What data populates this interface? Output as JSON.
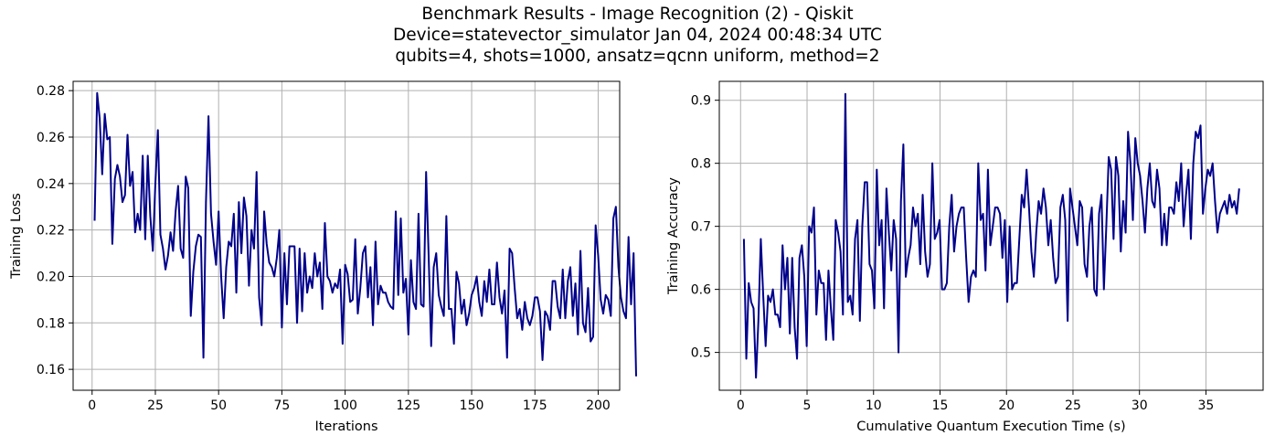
{
  "figure": {
    "title_lines": [
      "Benchmark Results - Image Recognition (2) - Qiskit",
      "Device=statevector_simulator  Jan 04, 2024 00:48:34 UTC",
      "qubits=4, shots=1000, ansatz=qcnn uniform, method=2"
    ]
  },
  "colors": {
    "line": "#00008b",
    "grid": "#b0b0b0",
    "axes": "#000000"
  },
  "chart_data": [
    {
      "type": "line",
      "xlabel": "Iterations",
      "ylabel": "Training Loss",
      "xlim": [
        -7.5,
        208.5
      ],
      "ylim": [
        0.151,
        0.284
      ],
      "xticks": [
        0,
        25,
        50,
        75,
        100,
        125,
        150,
        175,
        200
      ],
      "yticks": [
        0.16,
        0.18,
        0.2,
        0.22,
        0.24,
        0.26,
        0.28
      ],
      "xtick_labels": [
        "0",
        "25",
        "50",
        "75",
        "100",
        "125",
        "150",
        "175",
        "200"
      ],
      "ytick_labels": [
        "0.16",
        "0.18",
        "0.20",
        "0.22",
        "0.24",
        "0.26",
        "0.28"
      ],
      "grid": true,
      "x_start": 1,
      "x_step": 1,
      "series": [
        {
          "values": [
            0.224,
            0.279,
            0.268,
            0.244,
            0.27,
            0.259,
            0.26,
            0.214,
            0.242,
            0.248,
            0.243,
            0.232,
            0.235,
            0.261,
            0.239,
            0.245,
            0.219,
            0.227,
            0.22,
            0.252,
            0.216,
            0.252,
            0.226,
            0.211,
            0.24,
            0.263,
            0.218,
            0.212,
            0.203,
            0.209,
            0.219,
            0.211,
            0.228,
            0.239,
            0.212,
            0.208,
            0.243,
            0.238,
            0.183,
            0.202,
            0.213,
            0.218,
            0.217,
            0.165,
            0.232,
            0.269,
            0.227,
            0.215,
            0.205,
            0.228,
            0.2,
            0.182,
            0.204,
            0.215,
            0.213,
            0.227,
            0.193,
            0.232,
            0.21,
            0.234,
            0.226,
            0.196,
            0.22,
            0.212,
            0.245,
            0.191,
            0.179,
            0.228,
            0.214,
            0.206,
            0.204,
            0.2,
            0.208,
            0.22,
            0.178,
            0.21,
            0.188,
            0.213,
            0.213,
            0.213,
            0.18,
            0.212,
            0.185,
            0.21,
            0.193,
            0.2,
            0.195,
            0.21,
            0.2,
            0.206,
            0.186,
            0.223,
            0.2,
            0.198,
            0.193,
            0.197,
            0.195,
            0.203,
            0.171,
            0.205,
            0.201,
            0.189,
            0.19,
            0.216,
            0.184,
            0.195,
            0.21,
            0.213,
            0.191,
            0.204,
            0.179,
            0.215,
            0.188,
            0.196,
            0.193,
            0.193,
            0.189,
            0.187,
            0.186,
            0.228,
            0.192,
            0.225,
            0.193,
            0.199,
            0.175,
            0.207,
            0.189,
            0.186,
            0.227,
            0.188,
            0.187,
            0.245,
            0.209,
            0.17,
            0.204,
            0.21,
            0.192,
            0.187,
            0.183,
            0.226,
            0.186,
            0.186,
            0.171,
            0.202,
            0.197,
            0.184,
            0.19,
            0.179,
            0.184,
            0.192,
            0.195,
            0.2,
            0.189,
            0.183,
            0.198,
            0.189,
            0.203,
            0.188,
            0.188,
            0.206,
            0.191,
            0.184,
            0.194,
            0.165,
            0.212,
            0.21,
            0.195,
            0.182,
            0.186,
            0.177,
            0.189,
            0.182,
            0.179,
            0.183,
            0.191,
            0.191,
            0.185,
            0.164,
            0.185,
            0.183,
            0.177,
            0.198,
            0.198,
            0.187,
            0.182,
            0.203,
            0.182,
            0.198,
            0.204,
            0.183,
            0.197,
            0.175,
            0.211,
            0.18,
            0.176,
            0.195,
            0.172,
            0.174,
            0.222,
            0.209,
            0.19,
            0.184,
            0.192,
            0.19,
            0.183,
            0.225,
            0.23,
            0.204,
            0.191,
            0.185,
            0.182,
            0.217,
            0.188,
            0.21,
            0.157
          ]
        }
      ]
    },
    {
      "type": "line",
      "xlabel": "Cumulative Quantum Execution Time (s)",
      "ylabel": "Training Accuracy",
      "xlim": [
        -1.6,
        39.3
      ],
      "ylim": [
        0.44,
        0.93
      ],
      "xticks": [
        0,
        5,
        10,
        15,
        20,
        25,
        30,
        35
      ],
      "yticks": [
        0.5,
        0.6,
        0.7,
        0.8,
        0.9
      ],
      "xtick_labels": [
        "0",
        "5",
        "10",
        "15",
        "20",
        "25",
        "30",
        "35"
      ],
      "ytick_labels": [
        "0.5",
        "0.6",
        "0.7",
        "0.8",
        "0.9"
      ],
      "grid": true,
      "x_start": 0.25,
      "x_end": 37.5,
      "series": [
        {
          "values": [
            0.68,
            0.49,
            0.61,
            0.58,
            0.57,
            0.46,
            0.55,
            0.68,
            0.59,
            0.51,
            0.59,
            0.58,
            0.6,
            0.56,
            0.56,
            0.54,
            0.67,
            0.6,
            0.65,
            0.53,
            0.65,
            0.54,
            0.49,
            0.65,
            0.67,
            0.62,
            0.51,
            0.7,
            0.69,
            0.73,
            0.56,
            0.63,
            0.61,
            0.61,
            0.52,
            0.63,
            0.57,
            0.52,
            0.71,
            0.69,
            0.66,
            0.56,
            0.91,
            0.58,
            0.59,
            0.56,
            0.68,
            0.71,
            0.55,
            0.7,
            0.77,
            0.77,
            0.64,
            0.63,
            0.57,
            0.79,
            0.67,
            0.71,
            0.57,
            0.76,
            0.69,
            0.63,
            0.71,
            0.68,
            0.5,
            0.74,
            0.83,
            0.62,
            0.65,
            0.67,
            0.73,
            0.7,
            0.72,
            0.64,
            0.75,
            0.66,
            0.62,
            0.64,
            0.8,
            0.68,
            0.69,
            0.71,
            0.6,
            0.6,
            0.61,
            0.7,
            0.75,
            0.66,
            0.7,
            0.72,
            0.73,
            0.73,
            0.65,
            0.58,
            0.62,
            0.63,
            0.62,
            0.8,
            0.71,
            0.72,
            0.63,
            0.79,
            0.67,
            0.7,
            0.73,
            0.73,
            0.72,
            0.65,
            0.71,
            0.58,
            0.7,
            0.6,
            0.61,
            0.61,
            0.68,
            0.75,
            0.73,
            0.79,
            0.73,
            0.66,
            0.62,
            0.69,
            0.74,
            0.72,
            0.76,
            0.73,
            0.67,
            0.71,
            0.65,
            0.61,
            0.62,
            0.73,
            0.75,
            0.71,
            0.55,
            0.76,
            0.73,
            0.7,
            0.67,
            0.74,
            0.73,
            0.64,
            0.62,
            0.7,
            0.73,
            0.6,
            0.59,
            0.72,
            0.75,
            0.6,
            0.7,
            0.81,
            0.79,
            0.68,
            0.81,
            0.78,
            0.66,
            0.74,
            0.69,
            0.85,
            0.8,
            0.71,
            0.84,
            0.8,
            0.78,
            0.74,
            0.69,
            0.76,
            0.8,
            0.74,
            0.73,
            0.79,
            0.76,
            0.67,
            0.72,
            0.67,
            0.73,
            0.73,
            0.72,
            0.77,
            0.74,
            0.8,
            0.7,
            0.75,
            0.79,
            0.68,
            0.8,
            0.85,
            0.84,
            0.86,
            0.72,
            0.76,
            0.79,
            0.78,
            0.8,
            0.74,
            0.69,
            0.72,
            0.73,
            0.74,
            0.72,
            0.75,
            0.73,
            0.74,
            0.72,
            0.76
          ]
        }
      ]
    }
  ]
}
